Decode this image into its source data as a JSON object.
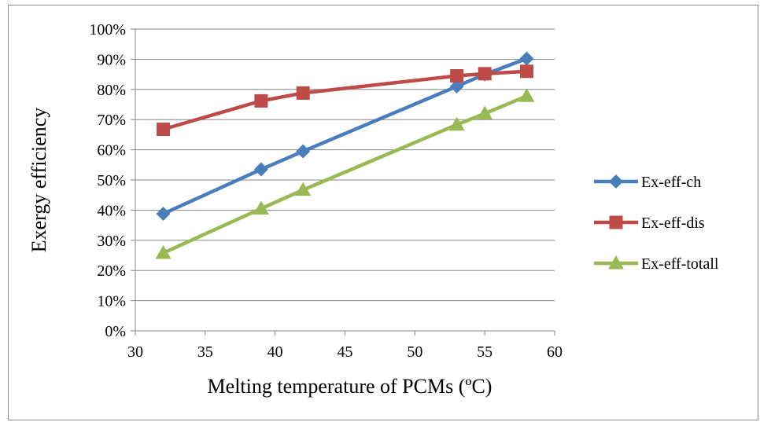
{
  "chart_data": {
    "type": "line",
    "title": "",
    "xlabel": "Melting temperature of PCMs (ºC)",
    "ylabel": "Exergy efficiency",
    "xlim": [
      30,
      60
    ],
    "ylim": [
      0,
      100
    ],
    "x_ticks": [
      "30",
      "35",
      "40",
      "45",
      "50",
      "55",
      "60"
    ],
    "y_ticks": [
      "0%",
      "10%",
      "20%",
      "30%",
      "40%",
      "50%",
      "60%",
      "70%",
      "80%",
      "90%",
      "100%"
    ],
    "grid": "horizontal",
    "legend_position": "right",
    "series": [
      {
        "name": "Ex-eff-ch",
        "color": "#4a7ebb",
        "marker": "diamond",
        "x": [
          32,
          39,
          42,
          53,
          55,
          58
        ],
        "y": [
          38.8,
          53.5,
          59.5,
          81,
          85,
          90.2
        ]
      },
      {
        "name": "Ex-eff-dis",
        "color": "#be4b48",
        "marker": "square",
        "x": [
          32,
          39,
          42,
          53,
          55,
          58
        ],
        "y": [
          66.8,
          76.2,
          78.8,
          84.5,
          85.2,
          86
        ]
      },
      {
        "name": "Ex-eff-totall",
        "color": "#98b954",
        "marker": "triangle",
        "x": [
          32,
          39,
          42,
          53,
          55,
          58
        ],
        "y": [
          25.8,
          40.5,
          46.7,
          68.3,
          72,
          77.8
        ]
      }
    ]
  }
}
